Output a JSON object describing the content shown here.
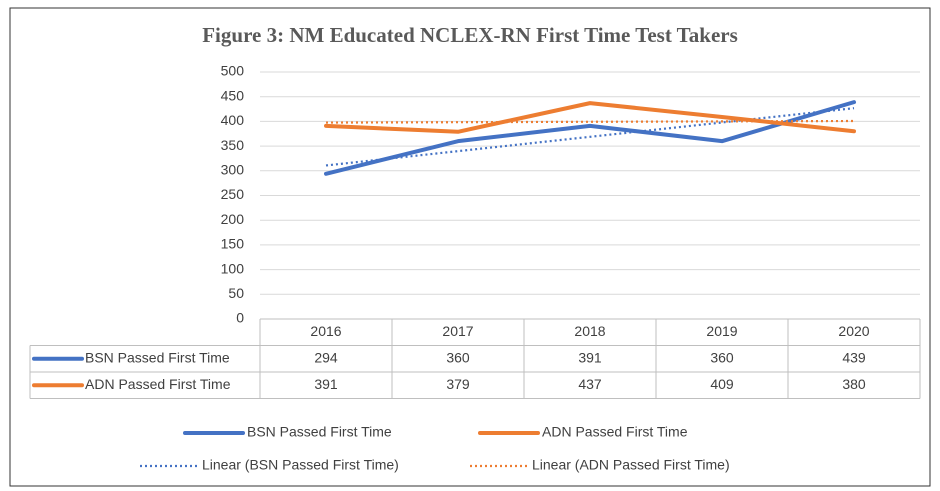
{
  "chart_data": {
    "type": "line",
    "title": "Figure 3: NM Educated NCLEX-RN First Time Test Takers",
    "categories": [
      "2016",
      "2017",
      "2018",
      "2019",
      "2020"
    ],
    "series": [
      {
        "name": "BSN Passed First Time",
        "color": "#4472c4",
        "values": [
          294,
          360,
          391,
          360,
          439
        ],
        "trendline": {
          "name": "Linear (BSN Passed First Time)",
          "style": "dotted"
        }
      },
      {
        "name": "ADN Passed First Time",
        "color": "#ed7d31",
        "values": [
          391,
          379,
          437,
          409,
          380
        ],
        "trendline": {
          "name": "Linear (ADN Passed First Time)",
          "style": "dotted"
        }
      }
    ],
    "ylim": [
      0,
      500
    ],
    "yticks": [
      0,
      50,
      100,
      150,
      200,
      250,
      300,
      350,
      400,
      450,
      500
    ],
    "grid": true,
    "data_table": true,
    "legend": "bottom"
  }
}
